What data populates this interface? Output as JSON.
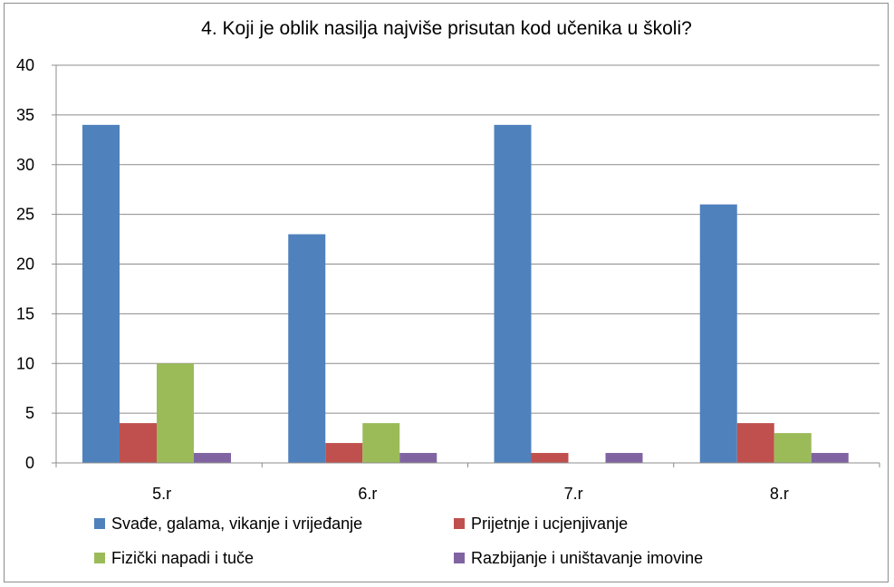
{
  "chart_data": {
    "type": "bar",
    "title": "4. Koji je oblik nasilja najviše prisutan kod učenika u školi?",
    "categories": [
      "5.r",
      "6.r",
      "7.r",
      "8.r"
    ],
    "series": [
      {
        "name": "Svađe, galama, vikanje i vrijeđanje",
        "color": "#4f81bd",
        "values": [
          34,
          23,
          34,
          26
        ]
      },
      {
        "name": "Prijetnje i ucjenjivanje",
        "color": "#c0504d",
        "values": [
          4,
          2,
          1,
          4
        ]
      },
      {
        "name": "Fizički napadi i tuče",
        "color": "#9bbb59",
        "values": [
          10,
          4,
          0,
          3
        ]
      },
      {
        "name": "Razbijanje i uništavanje imovine",
        "color": "#8064a2",
        "values": [
          1,
          1,
          1,
          1
        ]
      }
    ],
    "ylim": [
      0,
      40
    ],
    "yticks": [
      "0",
      "5",
      "10",
      "15",
      "20",
      "25",
      "30",
      "35",
      "40"
    ],
    "grid": true,
    "legend_position": "bottom"
  }
}
